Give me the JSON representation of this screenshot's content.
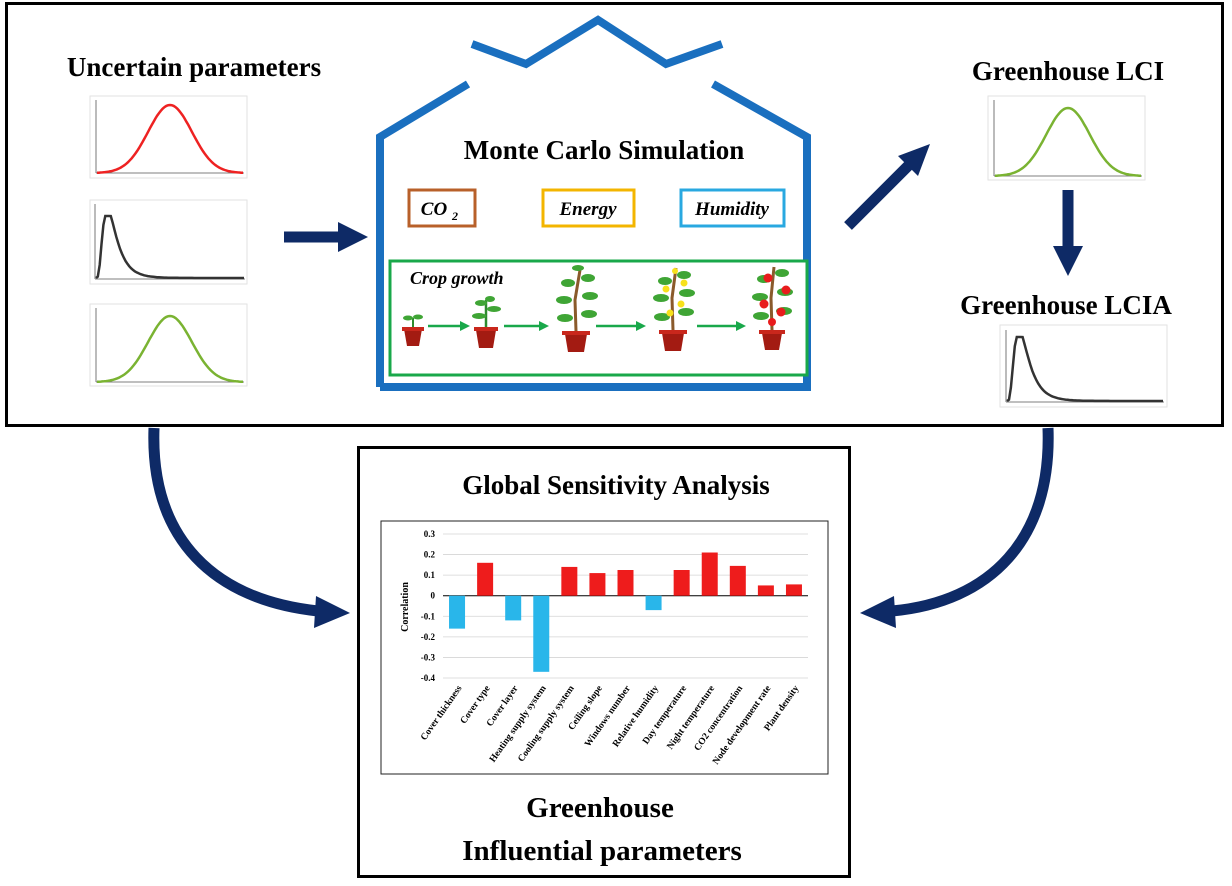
{
  "inputs": {
    "title": "Uncertain parameters",
    "distributions": [
      "normal-red",
      "lognormal-black",
      "normal-green"
    ]
  },
  "simulation": {
    "title": "Monte Carlo Simulation",
    "factors": [
      {
        "label": "CO",
        "sub": "2",
        "color": "#b8602a"
      },
      {
        "label": "Energy",
        "sub": "",
        "color": "#f3b500"
      },
      {
        "label": "Humidity",
        "sub": "",
        "color": "#29a8e0"
      }
    ],
    "crop_growth_label": "Crop growth",
    "frame_color": "#1a6fbf",
    "crop_frame_color": "#19a84a"
  },
  "lci": {
    "title": "Greenhouse LCI"
  },
  "lcia": {
    "title": "Greenhouse LCIA"
  },
  "gsa": {
    "title": "Global Sensitivity Analysis",
    "footer_line1": "Greenhouse",
    "footer_line2": "Influential parameters"
  },
  "colors": {
    "arrow": "#0e2a66",
    "positive": "#ee1c1c",
    "negative": "#29b6ea"
  },
  "chart_data": {
    "type": "bar",
    "title": "",
    "xlabel": "",
    "ylabel": "Correlation",
    "ylim": [
      -0.4,
      0.3
    ],
    "yticks": [
      "0.3",
      "0.2",
      "0.1",
      "0",
      "-0.1",
      "-0.2",
      "-0.3",
      "-0.4"
    ],
    "grid": true,
    "categories": [
      "Cover thickness",
      "Cover type",
      "Cover layer",
      "Heating supply system",
      "Cooling supply system",
      "Ceiling slope",
      "Windows number",
      "Relative humidity",
      "Day temperature",
      "Night temperature",
      "CO2 concentration",
      "Node development rate",
      "Plant density"
    ],
    "values": [
      -0.16,
      0.16,
      -0.12,
      -0.37,
      0.14,
      0.11,
      0.125,
      -0.07,
      0.125,
      0.21,
      0.145,
      0.05,
      0.055
    ]
  }
}
